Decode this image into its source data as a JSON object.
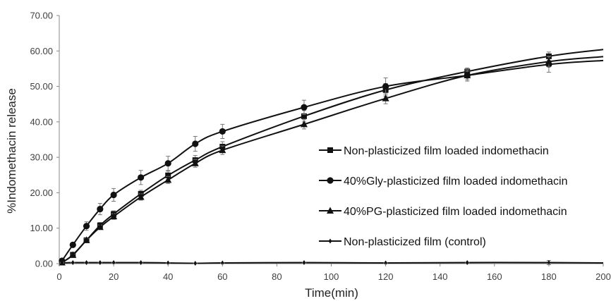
{
  "chart_data": {
    "type": "line",
    "title": "",
    "xlabel": "Time(min)",
    "ylabel": "%Indomethacin release",
    "xlim": [
      0,
      200
    ],
    "ylim": [
      0,
      70
    ],
    "x_ticks": [
      "0",
      "20",
      "40",
      "60",
      "80",
      "100",
      "120",
      "140",
      "160",
      "180",
      "200"
    ],
    "y_ticks": [
      "0.00",
      "10.00",
      "20.00",
      "30.00",
      "40.00",
      "50.00",
      "60.00",
      "70.00"
    ],
    "grid": false,
    "legend_position": "right",
    "series": [
      {
        "name": "Non-plasticized film loaded indomethacin",
        "marker": "square",
        "x": [
          1,
          5,
          10,
          15,
          20,
          30,
          40,
          50,
          60,
          90,
          120,
          150,
          180
        ],
        "y": [
          0.3,
          2.5,
          6.6,
          10.8,
          14.0,
          19.7,
          24.9,
          29.2,
          33.0,
          41.6,
          49.0,
          54.2,
          58.5
        ],
        "err": [
          0.3,
          0.4,
          0.6,
          0.8,
          0.9,
          1.0,
          1.2,
          1.3,
          1.4,
          1.6,
          1.8,
          1.0,
          1.2
        ],
        "trend_end": 60.4
      },
      {
        "name": "40%Gly-plasticized film loaded indomethacin",
        "marker": "circle",
        "x": [
          1,
          5,
          10,
          15,
          20,
          30,
          40,
          50,
          60,
          90,
          120,
          150,
          180
        ],
        "y": [
          0.8,
          5.3,
          10.6,
          15.4,
          19.4,
          24.3,
          28.3,
          33.8,
          37.3,
          44.1,
          50.0,
          53.1,
          56.2
        ],
        "err": [
          0.4,
          0.6,
          1.2,
          1.6,
          1.8,
          2.0,
          2.0,
          2.1,
          2.0,
          2.0,
          2.4,
          1.6,
          2.2
        ],
        "trend_end": 57.3
      },
      {
        "name": "40%PG-plasticized film loaded indomethacin",
        "marker": "triangle",
        "x": [
          1,
          5,
          10,
          15,
          20,
          30,
          40,
          50,
          60,
          90,
          120,
          150,
          180
        ],
        "y": [
          0.3,
          2.4,
          6.6,
          10.3,
          13.3,
          18.8,
          23.6,
          28.3,
          32.0,
          39.3,
          46.6,
          53.1,
          57.0
        ],
        "err": [
          0.2,
          0.3,
          0.5,
          0.6,
          0.8,
          0.9,
          1.0,
          1.1,
          1.2,
          1.3,
          1.5,
          1.2,
          1.5
        ],
        "trend_end": 58.4
      },
      {
        "name": "Non-plasticized film (control)",
        "marker": "diamond",
        "x": [
          1,
          5,
          10,
          15,
          20,
          30,
          40,
          50,
          60,
          90,
          120,
          150,
          180
        ],
        "y": [
          0.2,
          0.3,
          0.3,
          0.3,
          0.3,
          0.3,
          0.2,
          0.1,
          0.2,
          0.3,
          0.2,
          0.3,
          0.3
        ],
        "err": [
          0.1,
          0.1,
          0.1,
          0.1,
          0.1,
          0.1,
          0.1,
          0.1,
          0.1,
          0.1,
          0.1,
          0.1,
          0.6
        ],
        "trend_end": 0.2
      }
    ]
  }
}
